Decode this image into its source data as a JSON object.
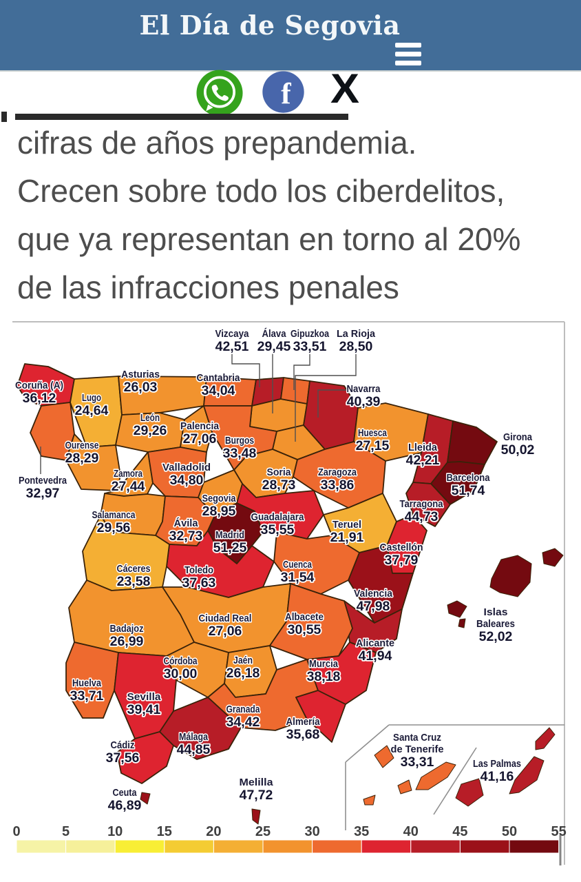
{
  "header": {
    "site_title": "El Día de Segovia"
  },
  "share": {
    "whatsapp_label": "WhatsApp",
    "facebook_label": "Facebook",
    "facebook_glyph": "f",
    "x_label": "X",
    "x_glyph": "X"
  },
  "article": {
    "dek_lines": [
      "cifras de años prepandemia.",
      "Crecen sobre todo los ciberdelitos,",
      "que ya representan en torno al 20%",
      "de las infracciones penales"
    ]
  },
  "chart_data": {
    "type": "choropleth-map",
    "region": "Spain by province",
    "scale": {
      "ticks": [
        0,
        5,
        10,
        15,
        20,
        25,
        30,
        35,
        40,
        45,
        50,
        55
      ],
      "colors": [
        "#f6f3a6",
        "#f6f09a",
        "#f8ee35",
        "#f4cc33",
        "#f4af34",
        "#f2932e",
        "#ee6a2f",
        "#de2430",
        "#b71d27",
        "#9b1119",
        "#740a10"
      ],
      "range": [
        0,
        55
      ]
    },
    "provinces": [
      {
        "id": "coruna",
        "name": "Coruña (A)",
        "value": 36.12,
        "label": "36,12"
      },
      {
        "id": "lugo",
        "name": "Lugo",
        "value": 24.64,
        "label": "24,64"
      },
      {
        "id": "pontevedra",
        "name": "Pontevedra",
        "value": 32.97,
        "label": "32,97"
      },
      {
        "id": "ourense",
        "name": "Ourense",
        "value": 28.29,
        "label": "28,29"
      },
      {
        "id": "asturias",
        "name": "Asturias",
        "value": 26.03,
        "label": "26,03"
      },
      {
        "id": "cantabria",
        "name": "Cantabria",
        "value": 34.04,
        "label": "34,04"
      },
      {
        "id": "vizcaya",
        "name": "Vizcaya",
        "value": 42.51,
        "label": "42,51"
      },
      {
        "id": "alava",
        "name": "Álava",
        "value": 29.45,
        "label": "29,45"
      },
      {
        "id": "gipuzkoa",
        "name": "Gipuzkoa",
        "value": 33.51,
        "label": "33,51"
      },
      {
        "id": "larioja",
        "name": "La Rioja",
        "value": 28.5,
        "label": "28,50"
      },
      {
        "id": "navarra",
        "name": "Navarra",
        "value": 40.39,
        "label": "40,39"
      },
      {
        "id": "leon",
        "name": "León",
        "value": 29.26,
        "label": "29,26"
      },
      {
        "id": "palencia",
        "name": "Palencia",
        "value": 27.06,
        "label": "27,06"
      },
      {
        "id": "burgos",
        "name": "Burgos",
        "value": 33.48,
        "label": "33,48"
      },
      {
        "id": "zamora",
        "name": "Zamora",
        "value": 27.44,
        "label": "27,44"
      },
      {
        "id": "valladolid",
        "name": "Valladolid",
        "value": 34.8,
        "label": "34,80"
      },
      {
        "id": "soria",
        "name": "Soria",
        "value": 28.73,
        "label": "28,73"
      },
      {
        "id": "segovia",
        "name": "Segovia",
        "value": 28.95,
        "label": "28,95"
      },
      {
        "id": "salamanca",
        "name": "Salamanca",
        "value": 29.56,
        "label": "29,56"
      },
      {
        "id": "avila",
        "name": "Ávila",
        "value": 32.73,
        "label": "32,73"
      },
      {
        "id": "madrid",
        "name": "Madrid",
        "value": 51.25,
        "label": "51,25"
      },
      {
        "id": "guadalajara",
        "name": "Guadalajara",
        "value": 35.55,
        "label": "35,55"
      },
      {
        "id": "huesca",
        "name": "Huesca",
        "value": 27.15,
        "label": "27,15"
      },
      {
        "id": "zaragoza",
        "name": "Zaragoza",
        "value": 33.86,
        "label": "33,86"
      },
      {
        "id": "teruel",
        "name": "Teruel",
        "value": 21.91,
        "label": "21,91"
      },
      {
        "id": "lleida",
        "name": "Lleida",
        "value": 42.21,
        "label": "42,21"
      },
      {
        "id": "girona",
        "name": "Girona",
        "value": 50.02,
        "label": "50,02"
      },
      {
        "id": "barcelona",
        "name": "Barcelona",
        "value": 51.74,
        "label": "51,74"
      },
      {
        "id": "tarragona",
        "name": "Tarragona",
        "value": 44.73,
        "label": "44,73"
      },
      {
        "id": "castellon",
        "name": "Castellón",
        "value": 37.79,
        "label": "37,79"
      },
      {
        "id": "valencia",
        "name": "Valencia",
        "value": 47.98,
        "label": "47,98"
      },
      {
        "id": "alicante",
        "name": "Alicante",
        "value": 41.94,
        "label": "41,94"
      },
      {
        "id": "cuenca",
        "name": "Cuenca",
        "value": 31.54,
        "label": "31,54"
      },
      {
        "id": "toledo",
        "name": "Toledo",
        "value": 37.63,
        "label": "37,63"
      },
      {
        "id": "ciudadreal",
        "name": "Ciudad Real",
        "value": 27.06,
        "label": "27,06"
      },
      {
        "id": "albacete",
        "name": "Albacete",
        "value": 30.55,
        "label": "30,55"
      },
      {
        "id": "caceres",
        "name": "Cáceres",
        "value": 23.58,
        "label": "23,58"
      },
      {
        "id": "badajoz",
        "name": "Badajoz",
        "value": 26.99,
        "label": "26,99"
      },
      {
        "id": "huelva",
        "name": "Huelva",
        "value": 33.71,
        "label": "33,71"
      },
      {
        "id": "sevilla",
        "name": "Sevilla",
        "value": 39.41,
        "label": "39,41"
      },
      {
        "id": "cordoba",
        "name": "Córdoba",
        "value": 30.0,
        "label": "30,00"
      },
      {
        "id": "jaen",
        "name": "Jaén",
        "value": 26.18,
        "label": "26,18"
      },
      {
        "id": "granada",
        "name": "Granada",
        "value": 34.42,
        "label": "34,42"
      },
      {
        "id": "malaga",
        "name": "Málaga",
        "value": 44.85,
        "label": "44,85"
      },
      {
        "id": "cadiz",
        "name": "Cádiz",
        "value": 37.56,
        "label": "37,56"
      },
      {
        "id": "almeria",
        "name": "Almería",
        "value": 35.68,
        "label": "35,68"
      },
      {
        "id": "murcia",
        "name": "Murcia",
        "value": 38.18,
        "label": "38,18"
      },
      {
        "id": "ceuta",
        "name": "Ceuta",
        "value": 46.89,
        "label": "46,89"
      },
      {
        "id": "melilla",
        "name": "Melilla",
        "value": 47.72,
        "label": "47,72"
      },
      {
        "id": "islasbaleares",
        "name": "Islas Baleares",
        "value": 52.02,
        "label": "52,02"
      },
      {
        "id": "santacruz",
        "name": "Santa Cruz de Tenerife",
        "value": 33.31,
        "label": "33,31"
      },
      {
        "id": "laspalmas",
        "name": "Las Palmas",
        "value": 41.16,
        "label": "41,16"
      }
    ]
  }
}
